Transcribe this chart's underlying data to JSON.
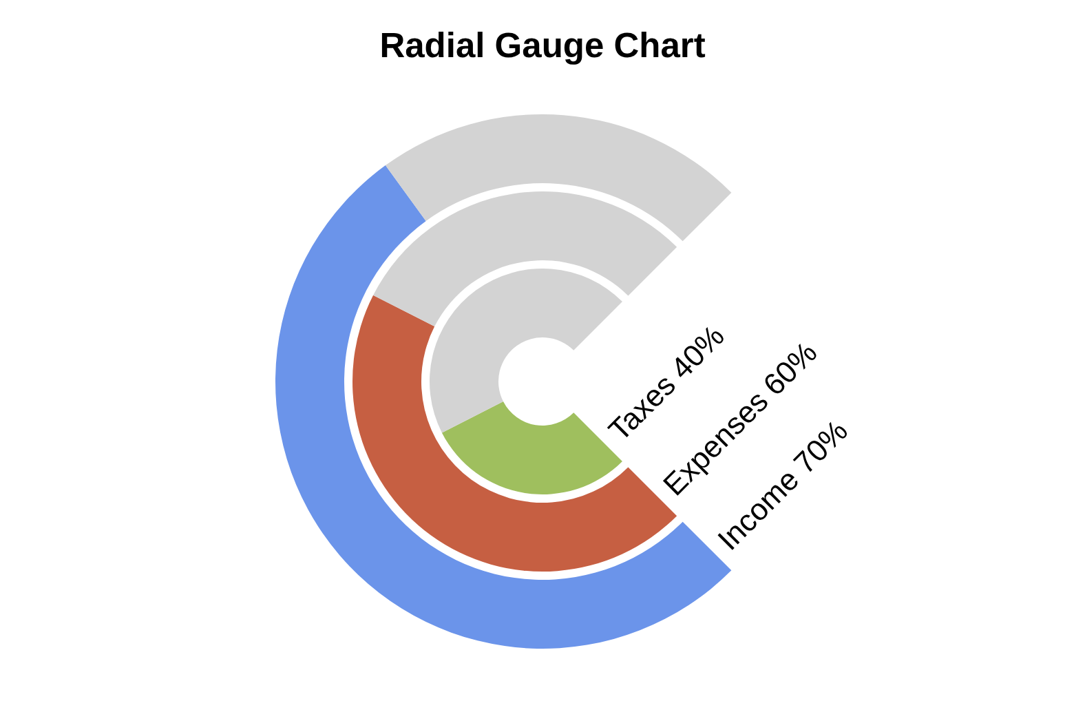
{
  "chart_data": {
    "type": "donut",
    "title": "Radial Gauge Chart",
    "categories": [
      null,
      null
    ],
    "series": [
      {
        "name": "Taxes",
        "values": [
          40,
          60
        ],
        "value_labels": [
          "40%",
          null
        ],
        "colors": [
          "#9fbf5e",
          "#d3d3d3"
        ]
      },
      {
        "name": "Expenses",
        "values": [
          60,
          40
        ],
        "value_labels": [
          "60%",
          null
        ],
        "colors": [
          "#c65f42",
          "#d3d3d3"
        ]
      },
      {
        "name": "Income",
        "values": [
          70,
          30
        ],
        "value_labels": [
          "70%",
          null
        ],
        "colors": [
          "#6b94ea",
          "#d3d3d3"
        ]
      }
    ]
  }
}
